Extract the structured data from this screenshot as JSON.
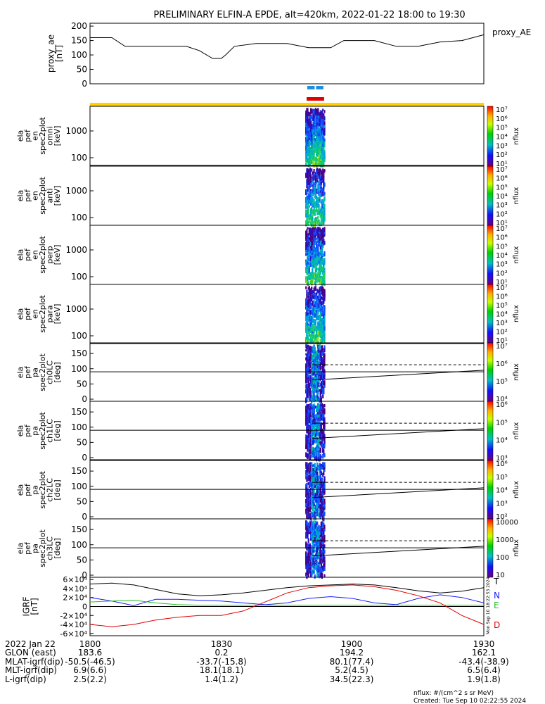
{
  "title": "PRELIMINARY ELFIN-A EPDE, alt=420km, 2022-01-22 18:00 to 19:30",
  "colors": {
    "ae_line": "#000000",
    "bar_top": "#1e8fe0",
    "bar_bottom": "#e00000",
    "bar_yellow": "#ffd200",
    "grf_T": "#000000",
    "grf_N": "#1a1aff",
    "grf_E": "#22c022",
    "grf_D": "#e00000"
  },
  "panels": {
    "ae": {
      "ylabel_lines": [
        "proxy_ae",
        "[nT]"
      ],
      "ticks": [
        "0",
        "50",
        "100",
        "150",
        "200"
      ],
      "legend": "proxy_AE"
    },
    "energy": [
      {
        "ylabel_lines": [
          "ela",
          "pef",
          "en",
          "spec2plot",
          "omni",
          "[keV]"
        ],
        "ticks": [
          "100",
          "1000"
        ]
      },
      {
        "ylabel_lines": [
          "ela",
          "pef",
          "en",
          "spec2plot",
          "anti",
          "[keV]"
        ],
        "ticks": [
          "100",
          "1000"
        ]
      },
      {
        "ylabel_lines": [
          "ela",
          "pef",
          "en",
          "spec2plot",
          "perp",
          "[keV]"
        ],
        "ticks": [
          "100",
          "1000"
        ]
      },
      {
        "ylabel_lines": [
          "ela",
          "pef",
          "en",
          "spec2plot",
          "para",
          "[keV]"
        ],
        "ticks": [
          "100",
          "1000"
        ]
      }
    ],
    "pa": [
      {
        "ylabel_lines": [
          "ela",
          "pef",
          "pa",
          "spec2plot",
          "ch0LC",
          "[deg]"
        ],
        "ticks": [
          "0",
          "50",
          "100",
          "150"
        ]
      },
      {
        "ylabel_lines": [
          "ela",
          "pef",
          "pa",
          "spec2plot",
          "ch1LC",
          "[deg]"
        ],
        "ticks": [
          "0",
          "50",
          "100",
          "150"
        ]
      },
      {
        "ylabel_lines": [
          "ela",
          "pef",
          "pa",
          "spec2plot",
          "ch2LC",
          "[deg]"
        ],
        "ticks": [
          "0",
          "50",
          "100",
          "150"
        ]
      },
      {
        "ylabel_lines": [
          "ela",
          "pef",
          "pa",
          "spec2plot",
          "ch3LC",
          "[deg]"
        ],
        "ticks": [
          "0",
          "50",
          "100",
          "150"
        ]
      }
    ],
    "grf": {
      "ylabel_lines": [
        "IGRF",
        "[nT]"
      ],
      "ticks": [
        "-6×10⁴",
        "-4×10⁴",
        "-2×10⁴",
        "0",
        "2×10⁴",
        "4×10⁴",
        "6×10⁴"
      ],
      "legend": [
        "T",
        "N",
        "E",
        "D"
      ],
      "vertical_text": "Mon Sep 10 18:22:53 2024"
    }
  },
  "colorbars": [
    {
      "label": "nflux",
      "ticks": [
        "10¹",
        "10²",
        "10³",
        "10⁴",
        "10⁵",
        "10⁶",
        "10⁷"
      ]
    },
    {
      "label": "nflux",
      "ticks": [
        "10¹",
        "10²",
        "10³",
        "10⁴",
        "10⁵",
        "10⁶",
        "10⁷"
      ]
    },
    {
      "label": "nflux",
      "ticks": [
        "10¹",
        "10²",
        "10³",
        "10⁴",
        "10⁵",
        "10⁶",
        "10⁷"
      ]
    },
    {
      "label": "nflux",
      "ticks": [
        "10¹",
        "10²",
        "10³",
        "10⁴",
        "10⁵",
        "10⁶",
        "10⁷"
      ]
    },
    {
      "label": "nflux",
      "ticks": [
        "10⁴",
        "10⁵",
        "10⁶",
        "10⁷"
      ]
    },
    {
      "label": "nflux",
      "ticks": [
        "10³",
        "10⁴",
        "10⁵",
        "10⁶"
      ]
    },
    {
      "label": "nflux",
      "ticks": [
        "10²",
        "10³",
        "10⁴",
        "10⁵",
        "10⁶"
      ]
    },
    {
      "label": "nflux",
      "ticks": [
        "10",
        "100",
        "1000",
        "10000"
      ]
    }
  ],
  "xaxis": {
    "row_labels": [
      "2022 Jan 22",
      "GLON (east)",
      "MLAT-igrf(dip)",
      "MLT-igrf(dip)",
      "L-igrf(dip)"
    ],
    "columns": [
      [
        "1800",
        "183.6",
        "-50.5(-46.5)",
        "6.9(6.6)",
        "2.5(2.2)"
      ],
      [
        "1830",
        "0.2",
        "-33.7(-15.8)",
        "18.1(18.1)",
        "1.4(1.2)"
      ],
      [
        "1900",
        "194.2",
        "80.1(77.4)",
        "5.2(4.5)",
        "34.5(22.3)"
      ],
      [
        "1930",
        "162.1",
        "-43.4(-38.9)",
        "6.5(6.4)",
        "1.9(1.8)"
      ]
    ]
  },
  "footer": {
    "units": "nflux: #/(cm^2 s sr MeV)",
    "created": "Created: Tue Sep 10 02:22:55 2024"
  },
  "chart_data": [
    {
      "type": "line",
      "name": "proxy_ae",
      "x_range": [
        "18:00",
        "19:30"
      ],
      "ylim": [
        0,
        200
      ],
      "x_min": [
        0,
        5,
        8,
        15,
        22,
        25,
        28,
        30,
        31,
        33,
        38,
        42,
        45,
        50,
        55,
        58,
        60,
        65,
        70,
        75,
        80,
        85,
        90
      ],
      "values": [
        160,
        160,
        130,
        130,
        130,
        115,
        88,
        88,
        100,
        130,
        140,
        140,
        140,
        125,
        125,
        150,
        150,
        150,
        130,
        130,
        145,
        150,
        170
      ],
      "series": [
        {
          "name": "proxy_AE"
        }
      ]
    },
    {
      "type": "heatmap",
      "panels": [
        "omni",
        "anti",
        "perp",
        "para",
        "ch0LC",
        "ch1LC",
        "ch2LC",
        "ch3LC"
      ],
      "active_window": [
        "18:49",
        "18:53"
      ]
    },
    {
      "type": "line",
      "name": "IGRF",
      "ylim": [
        -60000,
        60000
      ],
      "x_min": [
        0,
        5,
        10,
        15,
        20,
        25,
        30,
        35,
        40,
        45,
        50,
        55,
        60,
        65,
        70,
        75,
        80,
        85,
        90
      ],
      "series": [
        {
          "name": "T",
          "values": [
            50000,
            52000,
            48000,
            38000,
            28000,
            24000,
            26000,
            30000,
            36000,
            42000,
            46000,
            48000,
            50000,
            48000,
            42000,
            35000,
            30000,
            34000,
            42000
          ]
        },
        {
          "name": "N",
          "values": [
            20000,
            12000,
            2000,
            16000,
            16000,
            14000,
            12000,
            8000,
            4000,
            8000,
            18000,
            22000,
            18000,
            8000,
            4000,
            18000,
            26000,
            20000,
            8000
          ]
        },
        {
          "name": "E",
          "values": [
            10000,
            12000,
            14000,
            8000,
            4000,
            3000,
            3000,
            3000,
            3000,
            3000,
            3000,
            3000,
            3000,
            3000,
            3000,
            3000,
            3000,
            3000,
            3000
          ]
        },
        {
          "name": "D",
          "values": [
            -40000,
            -45000,
            -40000,
            -30000,
            -24000,
            -20000,
            -20000,
            -10000,
            10000,
            30000,
            42000,
            46000,
            48000,
            44000,
            36000,
            24000,
            8000,
            -20000,
            -40000
          ]
        }
      ]
    }
  ]
}
